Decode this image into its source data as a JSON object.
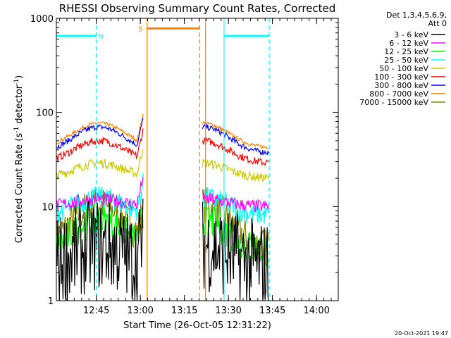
{
  "chart_data": {
    "type": "line",
    "title": "RHESSI Observing Summary Count Rates, Corrected",
    "xlabel": "Start Time (26-Oct-05 12:31:22)",
    "ylabel_prefix": "Corrected Count Rate (s",
    "ylabel_sup1": "-1",
    "ylabel_mid": " detector",
    "ylabel_sup2": "-1",
    "ylabel_suffix": ")",
    "yscale": "log",
    "ylim": [
      1,
      1000
    ],
    "xlim_minutes": [
      0,
      96
    ],
    "x_unit": "minutes after 12:31:22",
    "x_ticks": [
      {
        "t": 13.6,
        "label": "12:45"
      },
      {
        "t": 28.6,
        "label": "13:00"
      },
      {
        "t": 43.6,
        "label": "13:15"
      },
      {
        "t": 58.6,
        "label": "13:30"
      },
      {
        "t": 73.6,
        "label": "13:45"
      },
      {
        "t": 88.6,
        "label": "14:00"
      }
    ],
    "y_ticks": [
      {
        "v": 1,
        "label": "1"
      },
      {
        "v": 10,
        "label": "10"
      },
      {
        "v": 100,
        "label": "100"
      },
      {
        "v": 1000,
        "label": "1000"
      }
    ],
    "legend_title_1": "Det 1,3,4,5,6,9,",
    "legend_title_2": "Att 0",
    "series": [
      {
        "name": "3 - 6 keV",
        "color": "#000000",
        "base": 2.3,
        "amp": 1.6,
        "noise": 0.5
      },
      {
        "name": "6 - 12 keV",
        "color": "#ff00ff",
        "base": 10.0,
        "amp": 2.0,
        "noise": 0.07
      },
      {
        "name": "12 - 25 keV",
        "color": "#00ff00",
        "base": 3.3,
        "amp": 3.8,
        "noise": 0.18
      },
      {
        "name": "25 - 50 keV",
        "color": "#00ffff",
        "base": 8.0,
        "amp": 4.5,
        "noise": 0.12
      },
      {
        "name": "50 - 100 keV",
        "color": "#cccc00",
        "base": 20.0,
        "amp": 9.0,
        "noise": 0.05
      },
      {
        "name": "100 - 300 keV",
        "color": "#ff0000",
        "base": 29.0,
        "amp": 21.0,
        "noise": 0.04
      },
      {
        "name": "300 - 800 keV",
        "color": "#0000ff",
        "base": 37.0,
        "amp": 33.0,
        "noise": 0.03
      },
      {
        "name": "800 - 7000 keV",
        "color": "#ff8000",
        "base": 42.0,
        "amp": 35.0,
        "noise": 0.02
      },
      {
        "name": "7000 - 15000 keV",
        "color": "#808000",
        "base": 3.6,
        "amp": 6.8,
        "noise": 0.2
      }
    ],
    "data_windows_minutes": [
      [
        0,
        29.5
      ],
      [
        49.8,
        72.5
      ]
    ],
    "data_window_shapes": [
      {
        "start": 0,
        "end": 29.5,
        "peak_t": 14.6,
        "width": 11.0,
        "end_spike": 2.0
      },
      {
        "start": 49.8,
        "end": 72.5,
        "peak_t": 49.8,
        "width": 11.0,
        "end_spike": 1.0
      }
    ],
    "bars": [
      {
        "label": "N",
        "color": "#00ffff",
        "segments": [
          [
            0,
            13.6
          ],
          [
            57.1,
            72.5
          ]
        ],
        "level": 650,
        "label_t": 15.2
      },
      {
        "label": "S",
        "color": "#ff8000",
        "segments": [
          [
            30.9,
            48.8
          ]
        ],
        "level": 780,
        "label_t": 28.7
      }
    ],
    "vlines": [
      {
        "t": 13.6,
        "color": "#00ffff",
        "dashed": true
      },
      {
        "t": 57.1,
        "color": "#00ffff",
        "dashed": false
      },
      {
        "t": 72.5,
        "color": "#00ffff",
        "dashed": true
      },
      {
        "t": 30.9,
        "color": "#ff8000",
        "dashed": false
      },
      {
        "t": 48.8,
        "color": "#ff8000",
        "dashed": true
      },
      {
        "t": 50.8,
        "color": "#ff8000",
        "dashed": false
      }
    ]
  },
  "timestamp": "20-Oct-2021 19:47"
}
